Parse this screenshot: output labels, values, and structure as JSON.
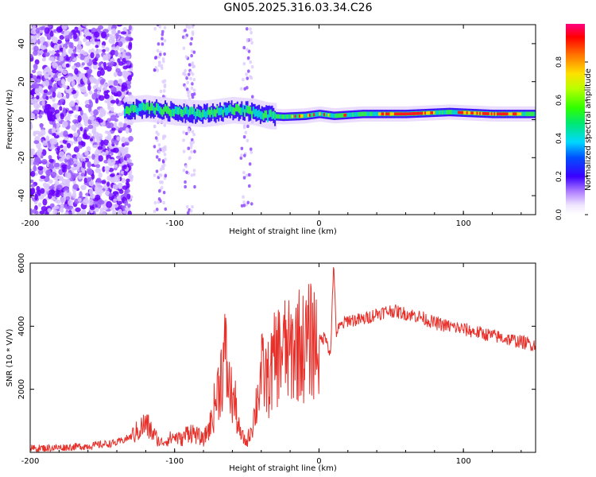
{
  "title": "GN05.2025.316.03.34.C26",
  "chart_data": [
    {
      "type": "heatmap",
      "name": "spectrogram",
      "xlabel": "Height of straight line (km)",
      "ylabel": "Frequency (Hz)",
      "xlim": [
        -200,
        150
      ],
      "ylim": [
        -50,
        50
      ],
      "xticks": [
        -200,
        -100,
        0,
        100
      ],
      "yticks": [
        -40,
        -20,
        0,
        20,
        40
      ],
      "ridge": {
        "x": [
          -135,
          -120,
          -100,
          -80,
          -60,
          -45,
          -35,
          -25,
          -10,
          0,
          10,
          30,
          60,
          90,
          120,
          150
        ],
        "frequency": [
          5,
          6,
          4,
          3,
          5,
          4,
          2,
          1.5,
          2,
          3,
          2,
          3,
          3,
          4,
          3,
          3
        ]
      },
      "colorbar": {
        "label": "Normalized spectral amplitude",
        "range": [
          0,
          1
        ],
        "ticks": [
          "0.0",
          "0.2",
          "0.4",
          "0.6",
          "0.8"
        ]
      }
    },
    {
      "type": "line",
      "name": "snr",
      "xlabel": "Height of straight line (km)",
      "ylabel": "SNR (10 * V/V)",
      "xlim": [
        -200,
        150
      ],
      "ylim": [
        0,
        6000
      ],
      "xticks": [
        -200,
        -100,
        0,
        100
      ],
      "yticks": [
        2000,
        4000,
        6000
      ],
      "color": "#e8302a",
      "series": [
        {
          "name": "SNR",
          "x": [
            -200,
            -180,
            -160,
            -140,
            -130,
            -120,
            -115,
            -110,
            -100,
            -95,
            -90,
            -80,
            -75,
            -65,
            -62,
            -58,
            -55,
            -50,
            -45,
            -40,
            -35,
            -30,
            -25,
            -20,
            -15,
            -10,
            -5,
            0,
            5,
            8,
            10,
            12,
            15,
            20,
            30,
            40,
            50,
            60,
            70,
            80,
            90,
            100,
            110,
            120,
            130,
            140,
            150
          ],
          "y": [
            120,
            150,
            200,
            300,
            500,
            900,
            600,
            300,
            500,
            400,
            700,
            400,
            900,
            3100,
            2000,
            1500,
            600,
            300,
            1100,
            2500,
            2300,
            3000,
            3300,
            3100,
            3500,
            3300,
            3600,
            3500,
            3700,
            3000,
            6000,
            3800,
            4000,
            4200,
            4200,
            4400,
            4500,
            4400,
            4300,
            4100,
            4000,
            3900,
            3800,
            3700,
            3600,
            3500,
            3400
          ]
        }
      ]
    }
  ]
}
